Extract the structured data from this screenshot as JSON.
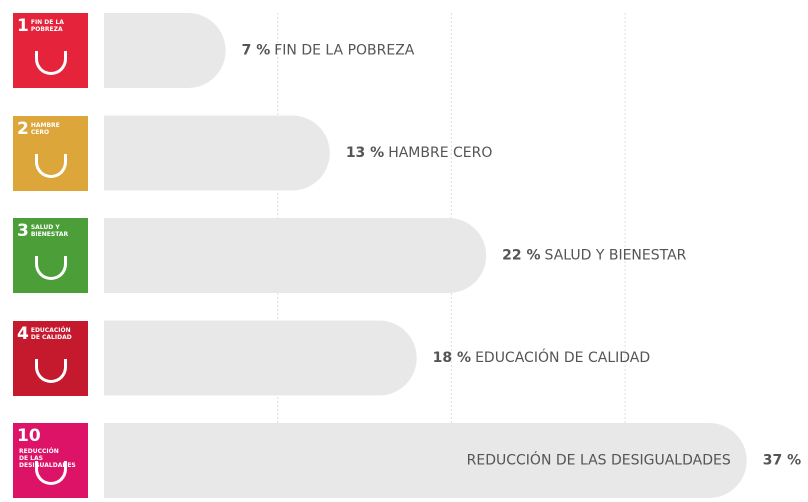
{
  "chart_data": {
    "type": "bar",
    "categories": [
      "FIN DE LA POBREZA",
      "HAMBRE CERO",
      "SALUD Y BIENESTAR",
      "EDUCACIÓN DE CALIDAD",
      "REDUCCIÓN DE LAS DESIGUALDADES"
    ],
    "goal_numbers": [
      "1",
      "2",
      "3",
      "4",
      "10"
    ],
    "icon_colors": [
      "#e5243b",
      "#dda63a",
      "#4c9f38",
      "#c5192d",
      "#dd1367"
    ],
    "values": [
      7,
      13,
      22,
      18,
      37
    ],
    "value_labels": [
      "7 %",
      "13 %",
      "22 %",
      "18 %",
      "37 %"
    ],
    "color": "#e8e8e8",
    "xlim": [
      0,
      40
    ],
    "xticks": [
      10,
      20,
      30
    ],
    "grid": true
  }
}
